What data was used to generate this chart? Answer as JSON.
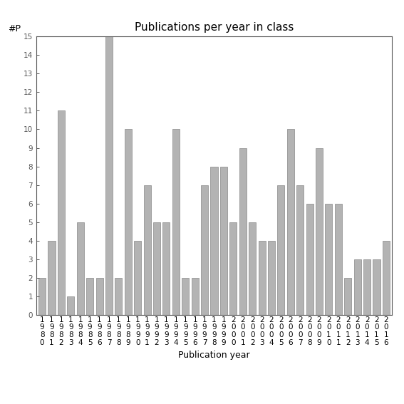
{
  "years": [
    1980,
    1981,
    1982,
    1983,
    1984,
    1985,
    1986,
    1987,
    1988,
    1989,
    1990,
    1991,
    1992,
    1993,
    1994,
    1995,
    1996,
    1997,
    1998,
    1999,
    2000,
    2001,
    2002,
    2003,
    2004,
    2005,
    2006,
    2007,
    2008,
    2009,
    2010,
    2011,
    2012,
    2013,
    2014,
    2015,
    2016
  ],
  "values": [
    2,
    4,
    11,
    1,
    5,
    2,
    2,
    15,
    2,
    10,
    4,
    7,
    5,
    5,
    10,
    2,
    2,
    7,
    8,
    8,
    5,
    9,
    5,
    4,
    4,
    7,
    10,
    7,
    6,
    9,
    6,
    6,
    2,
    3,
    3,
    3,
    4
  ],
  "title": "Publications per year in class",
  "xlabel": "Publication year",
  "ylabel": "#P",
  "ylim": [
    0,
    15
  ],
  "bar_color": "#b3b3b3",
  "bar_edgecolor": "#888888",
  "background_color": "#ffffff",
  "title_fontsize": 11,
  "label_fontsize": 9,
  "tick_fontsize": 7.5
}
